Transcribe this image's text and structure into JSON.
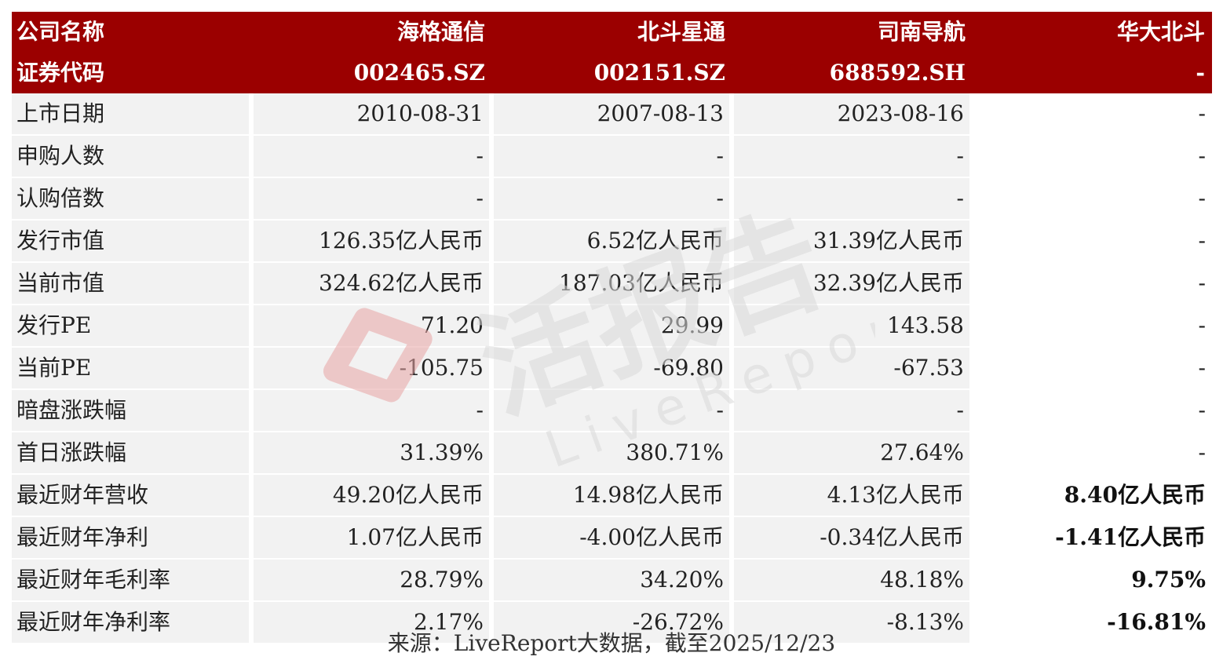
{
  "header": {
    "row1": [
      "公司名称",
      "海格通信",
      "北斗星通",
      "司南导航",
      "华大北斗"
    ],
    "row2": [
      "证券代码",
      "002465.SZ",
      "002151.SZ",
      "688592.SH",
      "-"
    ]
  },
  "rows": [
    {
      "label": "上市日期",
      "values": [
        "2010-08-31",
        "2007-08-13",
        "2023-08-16",
        "-"
      ]
    },
    {
      "label": "申购人数",
      "values": [
        "-",
        "-",
        "-",
        "-"
      ]
    },
    {
      "label": "认购倍数",
      "values": [
        "-",
        "-",
        "-",
        "-"
      ]
    },
    {
      "label": "发行市值",
      "values": [
        "126.35亿人民币",
        "6.52亿人民币",
        "31.39亿人民币",
        "-"
      ]
    },
    {
      "label": "当前市值",
      "values": [
        "324.62亿人民币",
        "187.03亿人民币",
        "32.39亿人民币",
        "-"
      ]
    },
    {
      "label": "发行PE",
      "values": [
        "71.20",
        "29.99",
        "143.58",
        "-"
      ]
    },
    {
      "label": "当前PE",
      "values": [
        "-105.75",
        "-69.80",
        "-67.53",
        "-"
      ]
    },
    {
      "label": "暗盘涨跌幅",
      "values": [
        "-",
        "-",
        "-",
        "-"
      ]
    },
    {
      "label": "首日涨跌幅",
      "values": [
        "31.39%",
        "380.71%",
        "27.64%",
        "-"
      ]
    },
    {
      "label": "最近财年营收",
      "values": [
        "49.20亿人民币",
        "14.98亿人民币",
        "4.13亿人民币",
        "8.40亿人民币"
      ]
    },
    {
      "label": "最近财年净利",
      "values": [
        "1.07亿人民币",
        "-4.00亿人民币",
        "-0.34亿人民币",
        "-1.41亿人民币"
      ]
    },
    {
      "label": "最近财年毛利率",
      "values": [
        "28.79%",
        "34.20%",
        "48.18%",
        "9.75%"
      ]
    },
    {
      "label": "最近财年净利率",
      "values": [
        "2.17%",
        "-26.72%",
        "-8.13%",
        "-16.81%"
      ]
    }
  ],
  "source_note": "来源：LiveReport大数据，截至2025/12/23",
  "watermark": {
    "brand_cn": "活报告",
    "brand_en": "LiveReport"
  },
  "colors": {
    "header_bg": "#9b0000",
    "header_text": "#ffffff",
    "cell_bg": "#f2f2f2",
    "watermark_red": "#e8a5a5",
    "watermark_grey": "#d9d9d9"
  }
}
